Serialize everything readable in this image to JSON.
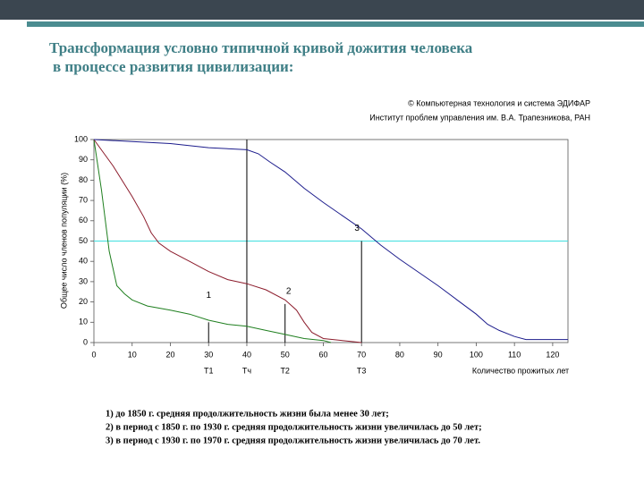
{
  "chart_data": {
    "type": "line",
    "title": [
      "Трансформация условно типичной кривой дожития человека",
      "в процессе развития цивилизации:"
    ],
    "credits": [
      "© Компьютерная технология и система ЭДИФАР",
      "Институт проблем управления им. В.А. Трапезникова, РАН"
    ],
    "xlabel": "Количество прожитых лет",
    "ylabel": "Общее число членов популяции (%)",
    "xlim": [
      0,
      124
    ],
    "ylim": [
      0,
      100
    ],
    "xticks": [
      0,
      10,
      20,
      30,
      40,
      50,
      60,
      70,
      80,
      90,
      100,
      110,
      120
    ],
    "yticks": [
      0,
      10,
      20,
      30,
      40,
      50,
      60,
      70,
      80,
      90,
      100
    ],
    "series": [
      {
        "name": "1",
        "color": "#1f7f1f",
        "x": [
          0,
          2,
          4,
          6,
          8,
          10,
          14,
          20,
          25,
          30,
          35,
          40,
          45,
          50,
          55,
          60,
          62
        ],
        "values": [
          100,
          75,
          45,
          28,
          24,
          21,
          18,
          16,
          14,
          11,
          9,
          8,
          6,
          4,
          2,
          1,
          0
        ]
      },
      {
        "name": "2",
        "color": "#8c1c2c",
        "x": [
          0,
          5,
          10,
          13,
          15,
          17,
          20,
          25,
          30,
          35,
          40,
          45,
          50,
          53,
          55,
          57,
          60,
          65,
          70
        ],
        "values": [
          100,
          87,
          72,
          62,
          54,
          49,
          45,
          40,
          35,
          31,
          29,
          26,
          21,
          16,
          10,
          5,
          2,
          1,
          0
        ]
      },
      {
        "name": "3",
        "color": "#1c1c8c",
        "x": [
          0,
          10,
          20,
          30,
          40,
          43,
          46,
          50,
          55,
          60,
          70,
          75,
          80,
          90,
          95,
          100,
          103,
          106,
          110,
          113,
          120,
          124
        ],
        "values": [
          100,
          99,
          98,
          96,
          95,
          93,
          89,
          84,
          76,
          69,
          56,
          48,
          41,
          28,
          21,
          14,
          9,
          6,
          3,
          1.5,
          1.5,
          1.5
        ]
      }
    ],
    "hline": {
      "y": 50,
      "color": "#40e0e0"
    },
    "vlines": [
      {
        "x": 30,
        "y": 10,
        "label": "Т1"
      },
      {
        "x": 40,
        "y": 100,
        "label": "Тч"
      },
      {
        "x": 50,
        "y": 19,
        "label": "Т2"
      },
      {
        "x": 70,
        "y": 50,
        "label": "Т3"
      }
    ],
    "notes": [
      "1)  до 1850 г. средняя продолжительность жизни была менее 30 лет;",
      "2)  в период с 1850 г. по 1930 г. средняя продолжительность жизни увеличилась до 50 лет;",
      "3)  в период с 1930 г. по 1970 г. средняя продолжительность жизни увеличилась до 70 лет."
    ]
  }
}
